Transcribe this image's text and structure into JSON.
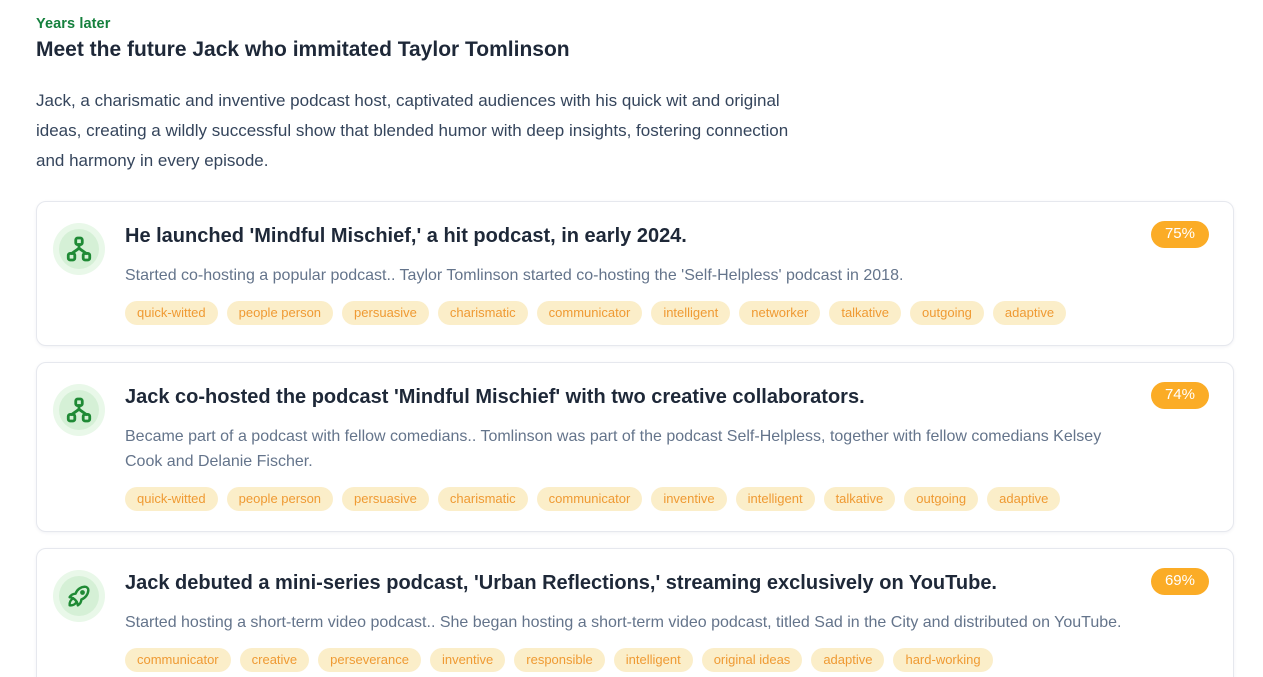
{
  "page": {
    "eyebrow": "Years later",
    "title": "Meet the future Jack who immitated Taylor Tomlinson",
    "intro": "Jack, a charismatic and inventive podcast host, captivated audiences with his quick wit and original ideas, creating a wildly successful show that blended humor with deep insights, fostering connection and harmony in every episode."
  },
  "colors": {
    "eyebrow_green": "#15803d",
    "heading_dark": "#1e2838",
    "subtitle_gray": "#64748b",
    "badge_orange": "#fbac26",
    "tag_background": "#fbeec9",
    "tag_text": "#ef9a33",
    "icon_green": "#1f8a35",
    "icon_circle_inner": "#d5f0d6",
    "icon_circle_outer": "#e9f8e9"
  },
  "cards": [
    {
      "icon": "hierarchy-icon",
      "title": "He launched 'Mindful Mischief,' a hit podcast, in early 2024.",
      "subtitle": "Started co-hosting a popular podcast.. Taylor Tomlinson started co-hosting the 'Self-Helpless' podcast in 2018.",
      "match": "75%",
      "tags": [
        "quick-witted",
        "people person",
        "persuasive",
        "charismatic",
        "communicator",
        "intelligent",
        "networker",
        "talkative",
        "outgoing",
        "adaptive"
      ]
    },
    {
      "icon": "hierarchy-icon",
      "title": "Jack co-hosted the podcast 'Mindful Mischief' with two creative collaborators.",
      "subtitle": "Became part of a podcast with fellow comedians.. Tomlinson was part of the podcast Self-Helpless, together with fellow comedians Kelsey Cook and Delanie Fischer.",
      "match": "74%",
      "tags": [
        "quick-witted",
        "people person",
        "persuasive",
        "charismatic",
        "communicator",
        "inventive",
        "intelligent",
        "talkative",
        "outgoing",
        "adaptive"
      ]
    },
    {
      "icon": "rocket-icon",
      "title": "Jack debuted a mini-series podcast, 'Urban Reflections,' streaming exclusively on YouTube.",
      "subtitle": "Started hosting a short-term video podcast.. She began hosting a short-term video podcast, titled Sad in the City and distributed on YouTube.",
      "match": "69%",
      "tags": [
        "communicator",
        "creative",
        "perseverance",
        "inventive",
        "responsible",
        "intelligent",
        "original ideas",
        "adaptive",
        "hard-working"
      ]
    }
  ]
}
